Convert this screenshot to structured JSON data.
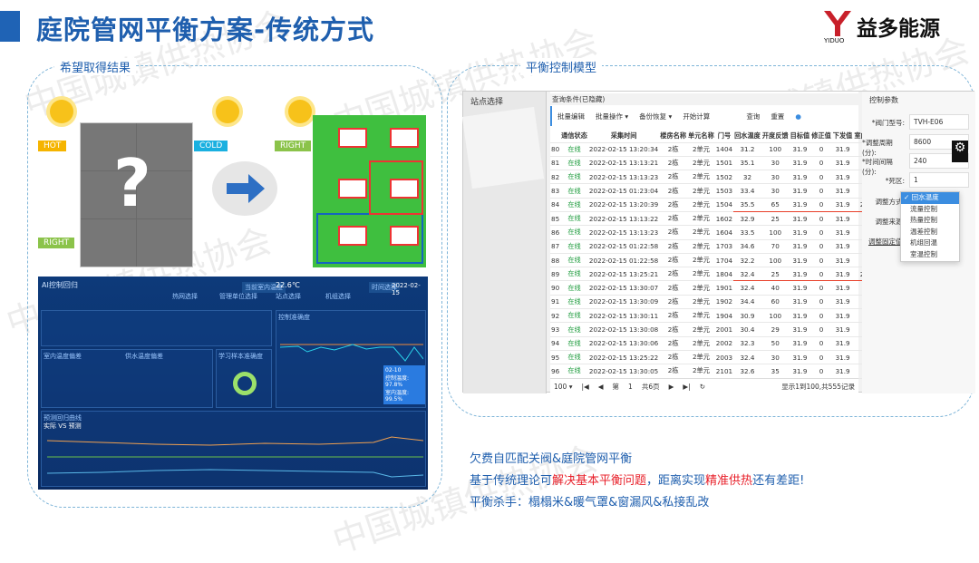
{
  "header": {
    "title": "庭院管网平衡方案-传统方式",
    "logo_mark": "YIDUO",
    "logo_text": "益多能源",
    "accent": "#1f5fae"
  },
  "watermark": "中国城镇供热协会",
  "left": {
    "label": "希望取得结果",
    "hot": "HOT",
    "cold": "COLD",
    "right1": "RIGHT",
    "right2": "RIGHT",
    "question": "?",
    "dashboard": {
      "title": "AI控制回归",
      "current_temp_label": "当前室内温度",
      "current_temp": "22.6℃",
      "time_label": "时间选择",
      "time": "2022-02-15",
      "filters": [
        "热网选择",
        "管理单位选择",
        "站点选择",
        "机组选择"
      ],
      "panels": [
        "室内温度偏差",
        "供水温度偏差",
        "学习样本准确度",
        "控制准确度",
        "预测回归曲线"
      ],
      "subtitle": "实际 VS 预测",
      "tooltip": {
        "date": "02-10",
        "l1": "控制温度: 97.8%",
        "l2": "室内温度: 99.5%"
      }
    }
  },
  "right": {
    "label": "平衡控制模型",
    "sidebar_title": "站点选择",
    "query_hidden": "查询条件(已隐藏)",
    "toolbar": [
      "批量编辑",
      "批量操作 ▾",
      "备份恢复 ▾",
      "开始计算"
    ],
    "search": "查询",
    "reset": "重置",
    "columns": [
      "",
      "通信状态",
      "采集时间",
      "楼房名称",
      "单元名称",
      "门号",
      "回水温度",
      "开度反馈",
      "目标值",
      "修正值",
      "下发值",
      "室内温度"
    ],
    "rows": [
      [
        "80",
        "在线",
        "2022-02-15 13:20:34",
        "2栋",
        "2单元",
        "1404",
        "31.2",
        "100",
        "31.9",
        "0",
        "31.9",
        ""
      ],
      [
        "81",
        "在线",
        "2022-02-15 13:13:21",
        "2栋",
        "2单元",
        "1501",
        "35.1",
        "30",
        "31.9",
        "0",
        "31.9",
        ""
      ],
      [
        "82",
        "在线",
        "2022-02-15 13:13:23",
        "2栋",
        "2单元",
        "1502",
        "32",
        "30",
        "31.9",
        "0",
        "31.9",
        ""
      ],
      [
        "83",
        "在线",
        "2022-02-15 01:23:04",
        "2栋",
        "2单元",
        "1503",
        "33.4",
        "30",
        "31.9",
        "0",
        "31.9",
        ""
      ],
      [
        "84",
        "在线",
        "2022-02-15 13:20:39",
        "2栋",
        "2单元",
        "1504",
        "35.5",
        "65",
        "31.9",
        "0",
        "31.9",
        "22.5"
      ],
      [
        "85",
        "在线",
        "2022-02-15 13:13:22",
        "2栋",
        "2单元",
        "1602",
        "32.9",
        "25",
        "31.9",
        "0",
        "31.9",
        ""
      ],
      [
        "86",
        "在线",
        "2022-02-15 13:13:23",
        "2栋",
        "2单元",
        "1604",
        "33.5",
        "100",
        "31.9",
        "0",
        "31.9",
        ""
      ],
      [
        "87",
        "在线",
        "2022-02-15 01:22:58",
        "2栋",
        "2单元",
        "1703",
        "34.6",
        "70",
        "31.9",
        "0",
        "31.9",
        ""
      ],
      [
        "88",
        "在线",
        "2022-02-15 01:22:58",
        "2栋",
        "2单元",
        "1704",
        "32.2",
        "100",
        "31.9",
        "0",
        "31.9",
        ""
      ],
      [
        "89",
        "在线",
        "2022-02-15 13:25:21",
        "2栋",
        "2单元",
        "1804",
        "32.4",
        "25",
        "31.9",
        "0",
        "31.9",
        "25.5"
      ],
      [
        "90",
        "在线",
        "2022-02-15 13:30:07",
        "2栋",
        "2单元",
        "1901",
        "32.4",
        "40",
        "31.9",
        "0",
        "31.9",
        ""
      ],
      [
        "91",
        "在线",
        "2022-02-15 13:30:09",
        "2栋",
        "2单元",
        "1902",
        "34.4",
        "60",
        "31.9",
        "0",
        "31.9",
        ""
      ],
      [
        "92",
        "在线",
        "2022-02-15 13:30:11",
        "2栋",
        "2单元",
        "1904",
        "30.9",
        "100",
        "31.9",
        "0",
        "31.9",
        ""
      ],
      [
        "93",
        "在线",
        "2022-02-15 13:30:08",
        "2栋",
        "2单元",
        "2001",
        "30.4",
        "29",
        "31.9",
        "0",
        "31.9",
        ""
      ],
      [
        "94",
        "在线",
        "2022-02-15 13:30:06",
        "2栋",
        "2单元",
        "2002",
        "32.3",
        "50",
        "31.9",
        "0",
        "31.9",
        ""
      ],
      [
        "95",
        "在线",
        "2022-02-15 13:25:22",
        "2栋",
        "2单元",
        "2003",
        "32.4",
        "30",
        "31.9",
        "0",
        "31.9",
        ""
      ],
      [
        "96",
        "在线",
        "2022-02-15 13:30:05",
        "2栋",
        "2单元",
        "2101",
        "32.6",
        "35",
        "31.9",
        "0",
        "31.9",
        ""
      ]
    ],
    "highlight_rows": [
      "84",
      "89"
    ],
    "pager": {
      "size": "100 ▾",
      "page_prefix": "第",
      "page": "1",
      "pages": "共6页",
      "summary": "显示1到100,共555记录"
    },
    "params": {
      "title": "控制参数",
      "fields": [
        [
          "*阀门型号:",
          "TVH-E06"
        ],
        [
          "*调整周期(分):",
          "8600"
        ],
        [
          "*时间间隔(分):",
          "240"
        ],
        [
          "*死区:",
          "1"
        ]
      ],
      "mode_label": "调整方式:",
      "source_label": "调整来源:",
      "fixed_label": "调整固定值:",
      "options": [
        "✓ 回水温度",
        "流量控制",
        "热量控制",
        "温差控制",
        "机组回温",
        "室温控制"
      ]
    }
  },
  "notes": {
    "l1": "欠费自匹配关阀&庭院管网平衡",
    "l2a": "基于传统理论可",
    "l2b": "解决基本平衡问题",
    "l2c": "，距离实现",
    "l2d": "精准供热",
    "l2e": "还有差距!",
    "l3": "平衡杀手：榻榻米&暖气罩&窗漏风&私接乱改"
  }
}
